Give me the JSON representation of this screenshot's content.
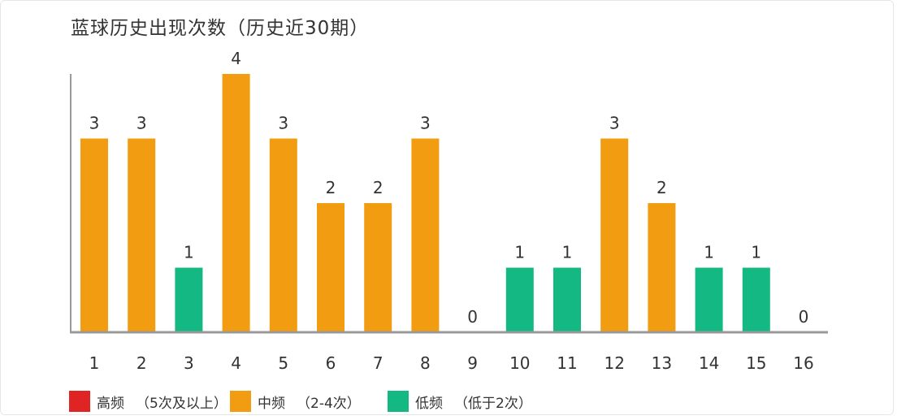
{
  "title": "蓝球历史出现次数（历史近30期）",
  "legend": [
    {
      "key": "high",
      "label": "高频",
      "note": "（5次及以上）",
      "color": "#e02424"
    },
    {
      "key": "mid",
      "label": "中频",
      "note": "（2-4次）",
      "color": "#f29c11"
    },
    {
      "key": "low",
      "label": "低频",
      "note": "（低于2次）",
      "color": "#13b882"
    }
  ],
  "chart_data": {
    "type": "bar",
    "categories": [
      "1",
      "2",
      "3",
      "4",
      "5",
      "6",
      "7",
      "8",
      "9",
      "10",
      "11",
      "12",
      "13",
      "14",
      "15",
      "16"
    ],
    "values": [
      3,
      3,
      1,
      4,
      3,
      2,
      2,
      3,
      0,
      1,
      1,
      3,
      2,
      1,
      1,
      0
    ],
    "title": "蓝球历史出现次数（历史近30期）",
    "xlabel": "",
    "ylabel": "",
    "ylim": [
      0,
      4
    ],
    "grid": false,
    "legend_position": "bottom-left",
    "color_rule": {
      "high_min": 5,
      "mid_min": 2,
      "mid_max": 4
    },
    "colors": {
      "high": "#e02424",
      "mid": "#f29c11",
      "low": "#13b882"
    }
  }
}
